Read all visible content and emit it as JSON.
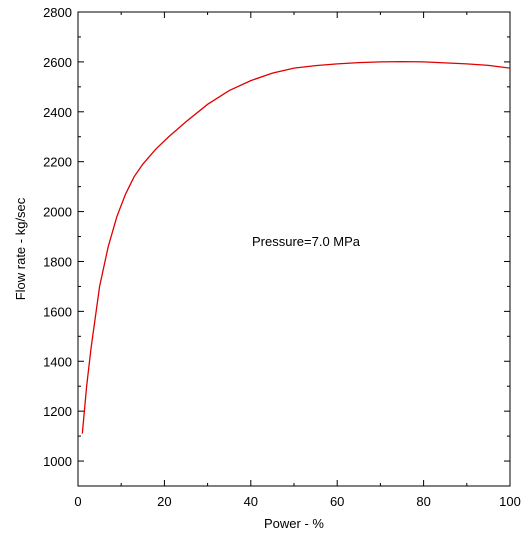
{
  "chart_data": {
    "type": "line",
    "xlabel": "Power - %",
    "ylabel": "Flow rate - kg/sec",
    "xlim": [
      0,
      100
    ],
    "ylim": [
      900,
      2800
    ],
    "x_ticks": [
      0,
      20,
      40,
      60,
      80,
      100
    ],
    "y_ticks": [
      1000,
      1200,
      1400,
      1600,
      1800,
      2000,
      2200,
      2400,
      2600,
      2800
    ],
    "grid": false,
    "annotation": "Pressure=7.0 MPa",
    "series": [
      {
        "color": "#e00000",
        "x": [
          1,
          2,
          3,
          5,
          7,
          9,
          11,
          13,
          15,
          18,
          21,
          25,
          30,
          35,
          40,
          45,
          50,
          55,
          60,
          65,
          70,
          75,
          80,
          85,
          90,
          95,
          100
        ],
        "y": [
          1110,
          1300,
          1450,
          1700,
          1860,
          1980,
          2070,
          2140,
          2190,
          2250,
          2300,
          2360,
          2430,
          2485,
          2525,
          2555,
          2575,
          2585,
          2592,
          2597,
          2600,
          2601,
          2600,
          2596,
          2592,
          2586,
          2575
        ]
      }
    ]
  }
}
